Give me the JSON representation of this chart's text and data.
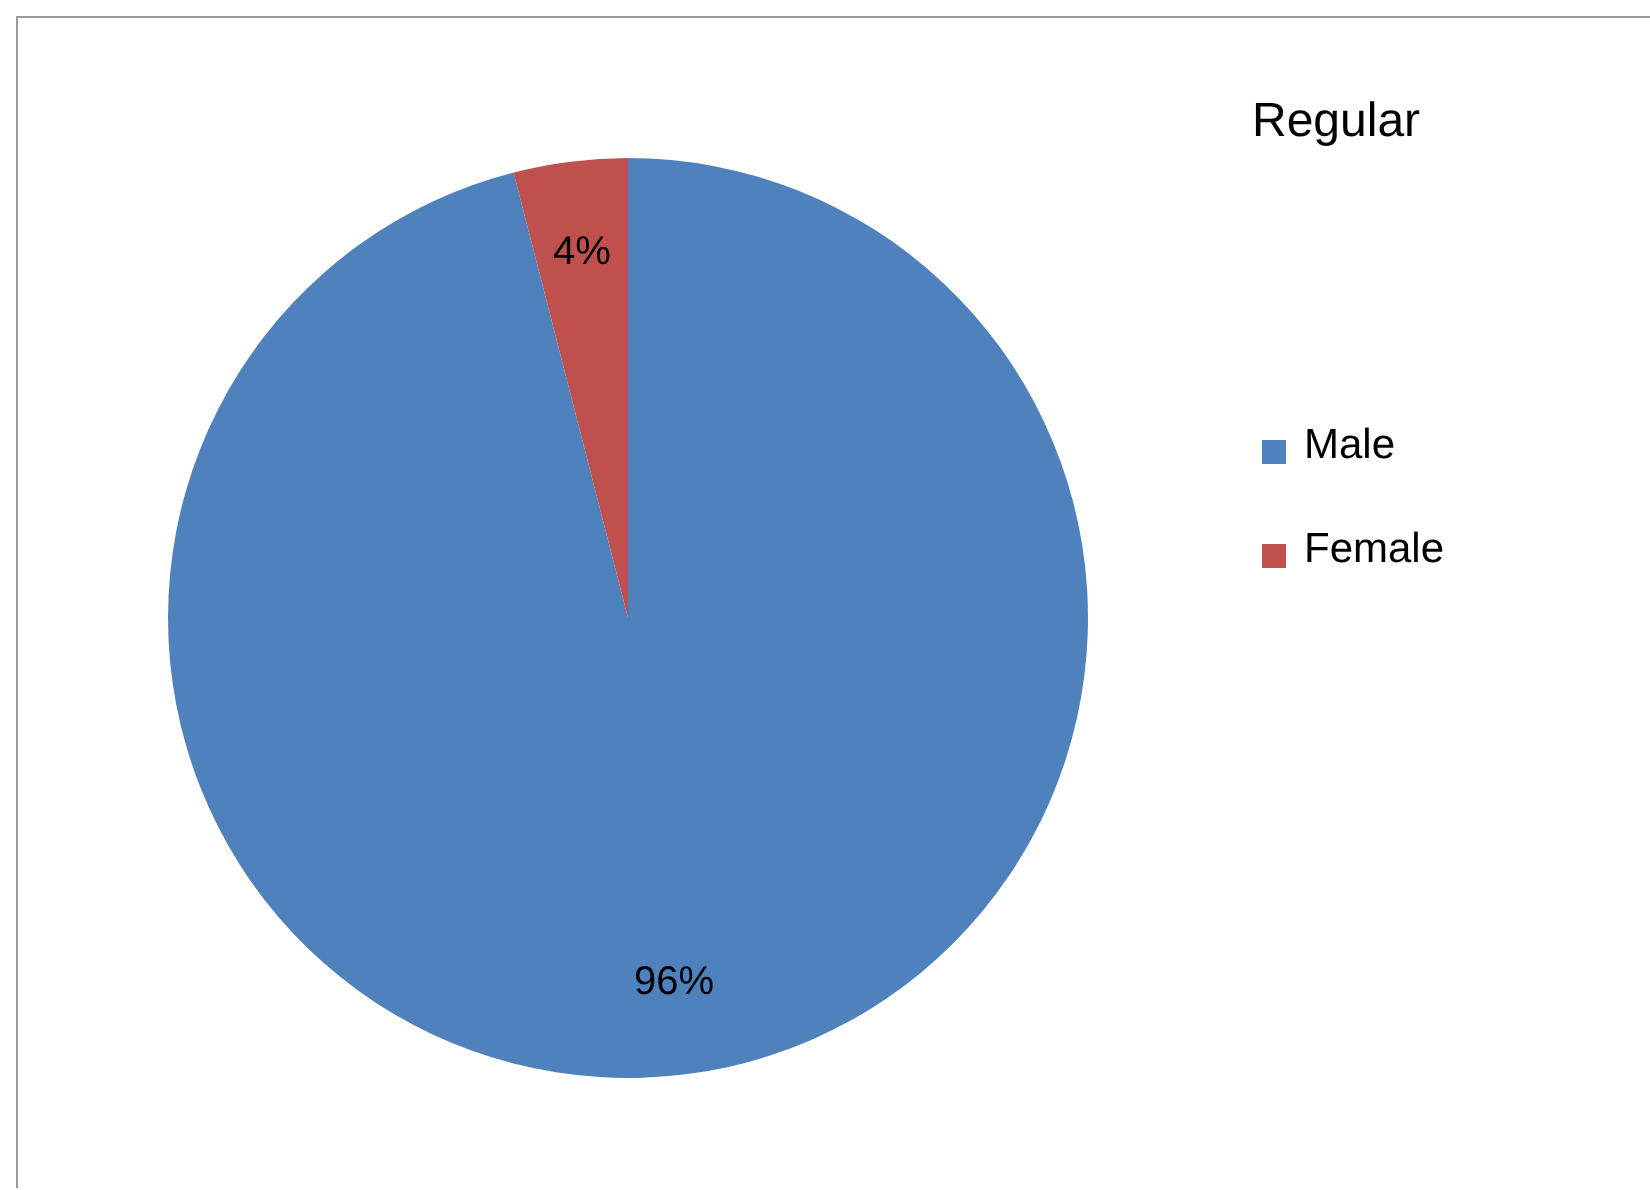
{
  "chart_data": {
    "type": "pie",
    "title": "Regular",
    "categories": [
      "Male",
      "Female"
    ],
    "values": [
      96,
      4
    ],
    "colors": [
      "#4f81bd",
      "#c0504d"
    ],
    "value_labels": [
      "96%",
      "4%"
    ],
    "legend": "right"
  }
}
